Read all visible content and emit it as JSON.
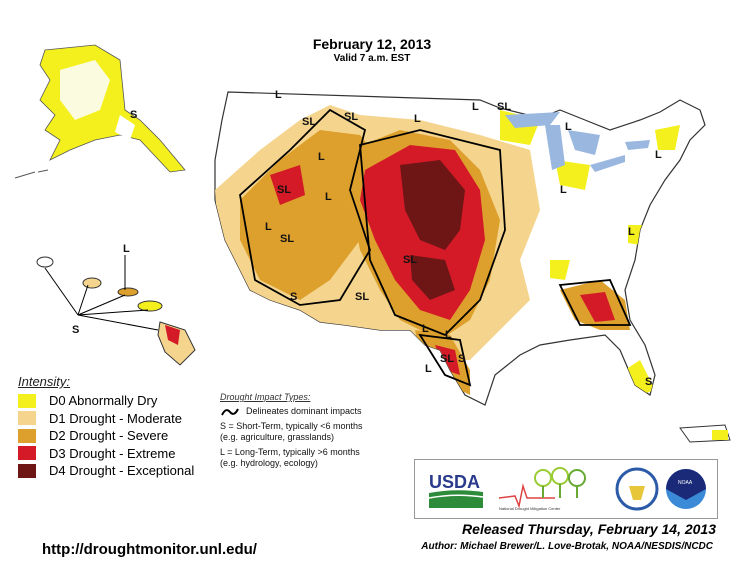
{
  "header": {
    "date": "February 12, 2013",
    "valid": "Valid 7 a.m. EST"
  },
  "legend": {
    "title": "Intensity:",
    "items": [
      {
        "label": "D0 Abnormally Dry",
        "color": "#f4f01e"
      },
      {
        "label": "D1 Drought - Moderate",
        "color": "#f5d58e"
      },
      {
        "label": "D2 Drought - Severe",
        "color": "#dda02d"
      },
      {
        "label": "D3 Drought - Extreme",
        "color": "#d41a26"
      },
      {
        "label": "D4 Drought - Exceptional",
        "color": "#6e1516"
      }
    ]
  },
  "impact": {
    "title": "Drought Impact Types:",
    "delineates": "Delineates dominant impacts",
    "short_term": "S = Short-Term, typically <6 months",
    "short_examples": "(e.g. agriculture, grasslands)",
    "long_term": "L = Long-Term, typically >6 months",
    "long_examples": "(e.g. hydrology, ecology)"
  },
  "map_labels": [
    "S",
    "SL",
    "L",
    "L",
    "SL",
    "L",
    "L",
    "SL",
    "L",
    "L",
    "SL",
    "L",
    "SL",
    "SL",
    "L",
    "SL",
    "L",
    "L",
    "SL",
    "L",
    "S",
    "L",
    "L",
    "S",
    "S",
    "L",
    "S"
  ],
  "logos": {
    "usda": "USDA",
    "ndmc": "National Drought Mitigation Center",
    "commerce": "Department of Commerce",
    "noaa": "NOAA"
  },
  "footer": {
    "released": "Released Thursday, February 14, 2013",
    "author": "Author: Michael Brewer/L. Love-Brotak, NOAA/NESDIS/NCDC",
    "url": "http://droughtmonitor.unl.edu/"
  }
}
